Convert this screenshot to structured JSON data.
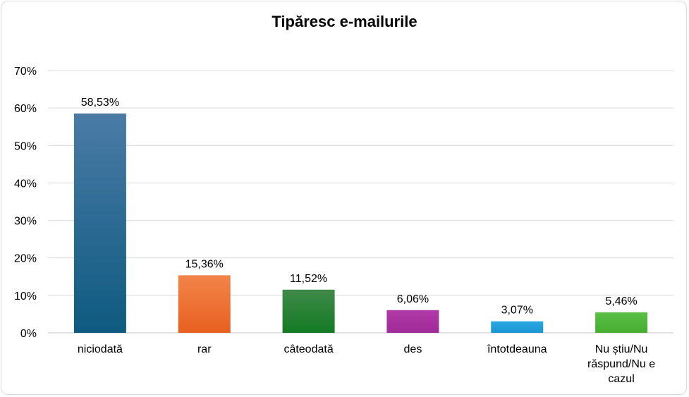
{
  "chart_data": {
    "type": "bar",
    "title": "Tipăresc e-mailurile",
    "xlabel": "",
    "ylabel": "",
    "ylim": [
      0,
      70
    ],
    "yticks": [
      0,
      10,
      20,
      30,
      40,
      50,
      60,
      70
    ],
    "ytick_labels": [
      "0%",
      "10%",
      "20%",
      "30%",
      "40%",
      "50%",
      "60%",
      "70%"
    ],
    "grid": true,
    "legend": "none",
    "categories": [
      [
        "niciodată"
      ],
      [
        "rar"
      ],
      [
        "câteodată"
      ],
      [
        "des"
      ],
      [
        "întotdeauna"
      ],
      [
        "Nu știu/Nu",
        "răspund/Nu e",
        "cazul"
      ]
    ],
    "values": [
      58.53,
      15.36,
      11.52,
      6.06,
      3.07,
      5.46
    ],
    "value_labels": [
      "58,53%",
      "15,36%",
      "11,52%",
      "6,06%",
      "3,07%",
      "5,46%"
    ],
    "colors": [
      [
        "#4a7ba6",
        "#0e5a80"
      ],
      [
        "#f2844a",
        "#e8601f"
      ],
      [
        "#3f8a4a",
        "#137a22"
      ],
      [
        "#b03aa8",
        "#a02a98"
      ],
      [
        "#2aa6e0",
        "#1a96d4"
      ],
      [
        "#5cbf48",
        "#45ad30"
      ]
    ]
  }
}
